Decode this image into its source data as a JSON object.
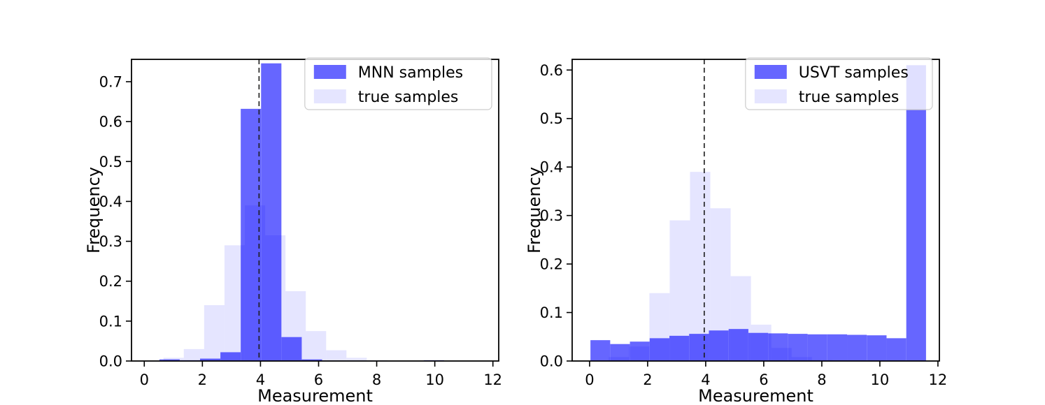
{
  "figure": {
    "background": "#ffffff"
  },
  "colors": {
    "estimate_hist": "#6666ff",
    "true_hist_overlay": "rgba(0,0,255,0.10)",
    "dashed_line": "#1c1c1c",
    "axis_line": "#000000",
    "legend_border": "#cccccc",
    "legend_bg": "rgba(255,255,255,0.8)"
  },
  "chart_data": [
    {
      "type": "histogram",
      "panel": "left",
      "title": "",
      "xlabel": "Measurement",
      "ylabel": "Frequency",
      "xlim": [
        -0.44,
        12.2
      ],
      "ylim": [
        0,
        0.756
      ],
      "xticks": [
        "0",
        "2",
        "4",
        "6",
        "8",
        "10",
        "12"
      ],
      "xtick_values": [
        0,
        2,
        4,
        6,
        8,
        10,
        12
      ],
      "yticks": [
        "0.0",
        "0.1",
        "0.2",
        "0.3",
        "0.4",
        "0.5",
        "0.6",
        "0.7"
      ],
      "ytick_values": [
        0,
        0.1,
        0.2,
        0.3,
        0.4,
        0.5,
        0.6,
        0.7
      ],
      "grid": false,
      "vline_x": 3.95,
      "legend": {
        "position": "upper-right",
        "entries": [
          {
            "label": "MNN samples",
            "role": "estimate"
          },
          {
            "label": "true samples",
            "role": "true"
          }
        ]
      },
      "series": [
        {
          "name": "MNN samples",
          "role": "estimate",
          "bin_start": 0.52,
          "bin_width": 0.7,
          "heights": [
            0.004,
            0.002,
            0.006,
            0.022,
            0.632,
            0.746,
            0.06,
            0.004,
            0,
            0,
            0,
            0,
            0,
            0.002
          ]
        },
        {
          "name": "true samples",
          "role": "true",
          "bin_start": 0.66,
          "bin_width": 0.7,
          "heights": [
            0.008,
            0.03,
            0.14,
            0.29,
            0.39,
            0.315,
            0.175,
            0.075,
            0.027,
            0.008,
            0.002
          ]
        }
      ]
    },
    {
      "type": "histogram",
      "panel": "right",
      "title": "",
      "xlabel": "Measurement",
      "ylabel": "Frequency",
      "xlim": [
        -0.6,
        12.05
      ],
      "ylim": [
        0,
        0.622
      ],
      "xticks": [
        "0",
        "2",
        "4",
        "6",
        "8",
        "10",
        "12"
      ],
      "xtick_values": [
        0,
        2,
        4,
        6,
        8,
        10,
        12
      ],
      "yticks": [
        "0.0",
        "0.1",
        "0.2",
        "0.3",
        "0.4",
        "0.5",
        "0.6"
      ],
      "ytick_values": [
        0,
        0.1,
        0.2,
        0.3,
        0.4,
        0.5,
        0.6
      ],
      "grid": false,
      "vline_x": 3.95,
      "legend": {
        "position": "upper-right",
        "entries": [
          {
            "label": "USVT samples",
            "role": "estimate"
          },
          {
            "label": "true samples",
            "role": "true"
          }
        ]
      },
      "series": [
        {
          "name": "USVT samples",
          "role": "estimate",
          "bin_start": 0.03,
          "bin_width": 0.68,
          "heights": [
            0.043,
            0.035,
            0.04,
            0.047,
            0.052,
            0.056,
            0.063,
            0.066,
            0.058,
            0.057,
            0.056,
            0.055,
            0.055,
            0.054,
            0.053,
            0.047,
            0.61
          ]
        },
        {
          "name": "true samples",
          "role": "true",
          "bin_start": 0.66,
          "bin_width": 0.7,
          "heights": [
            0.008,
            0.03,
            0.14,
            0.29,
            0.39,
            0.315,
            0.175,
            0.075,
            0.027,
            0.008,
            0.002
          ]
        }
      ]
    }
  ]
}
